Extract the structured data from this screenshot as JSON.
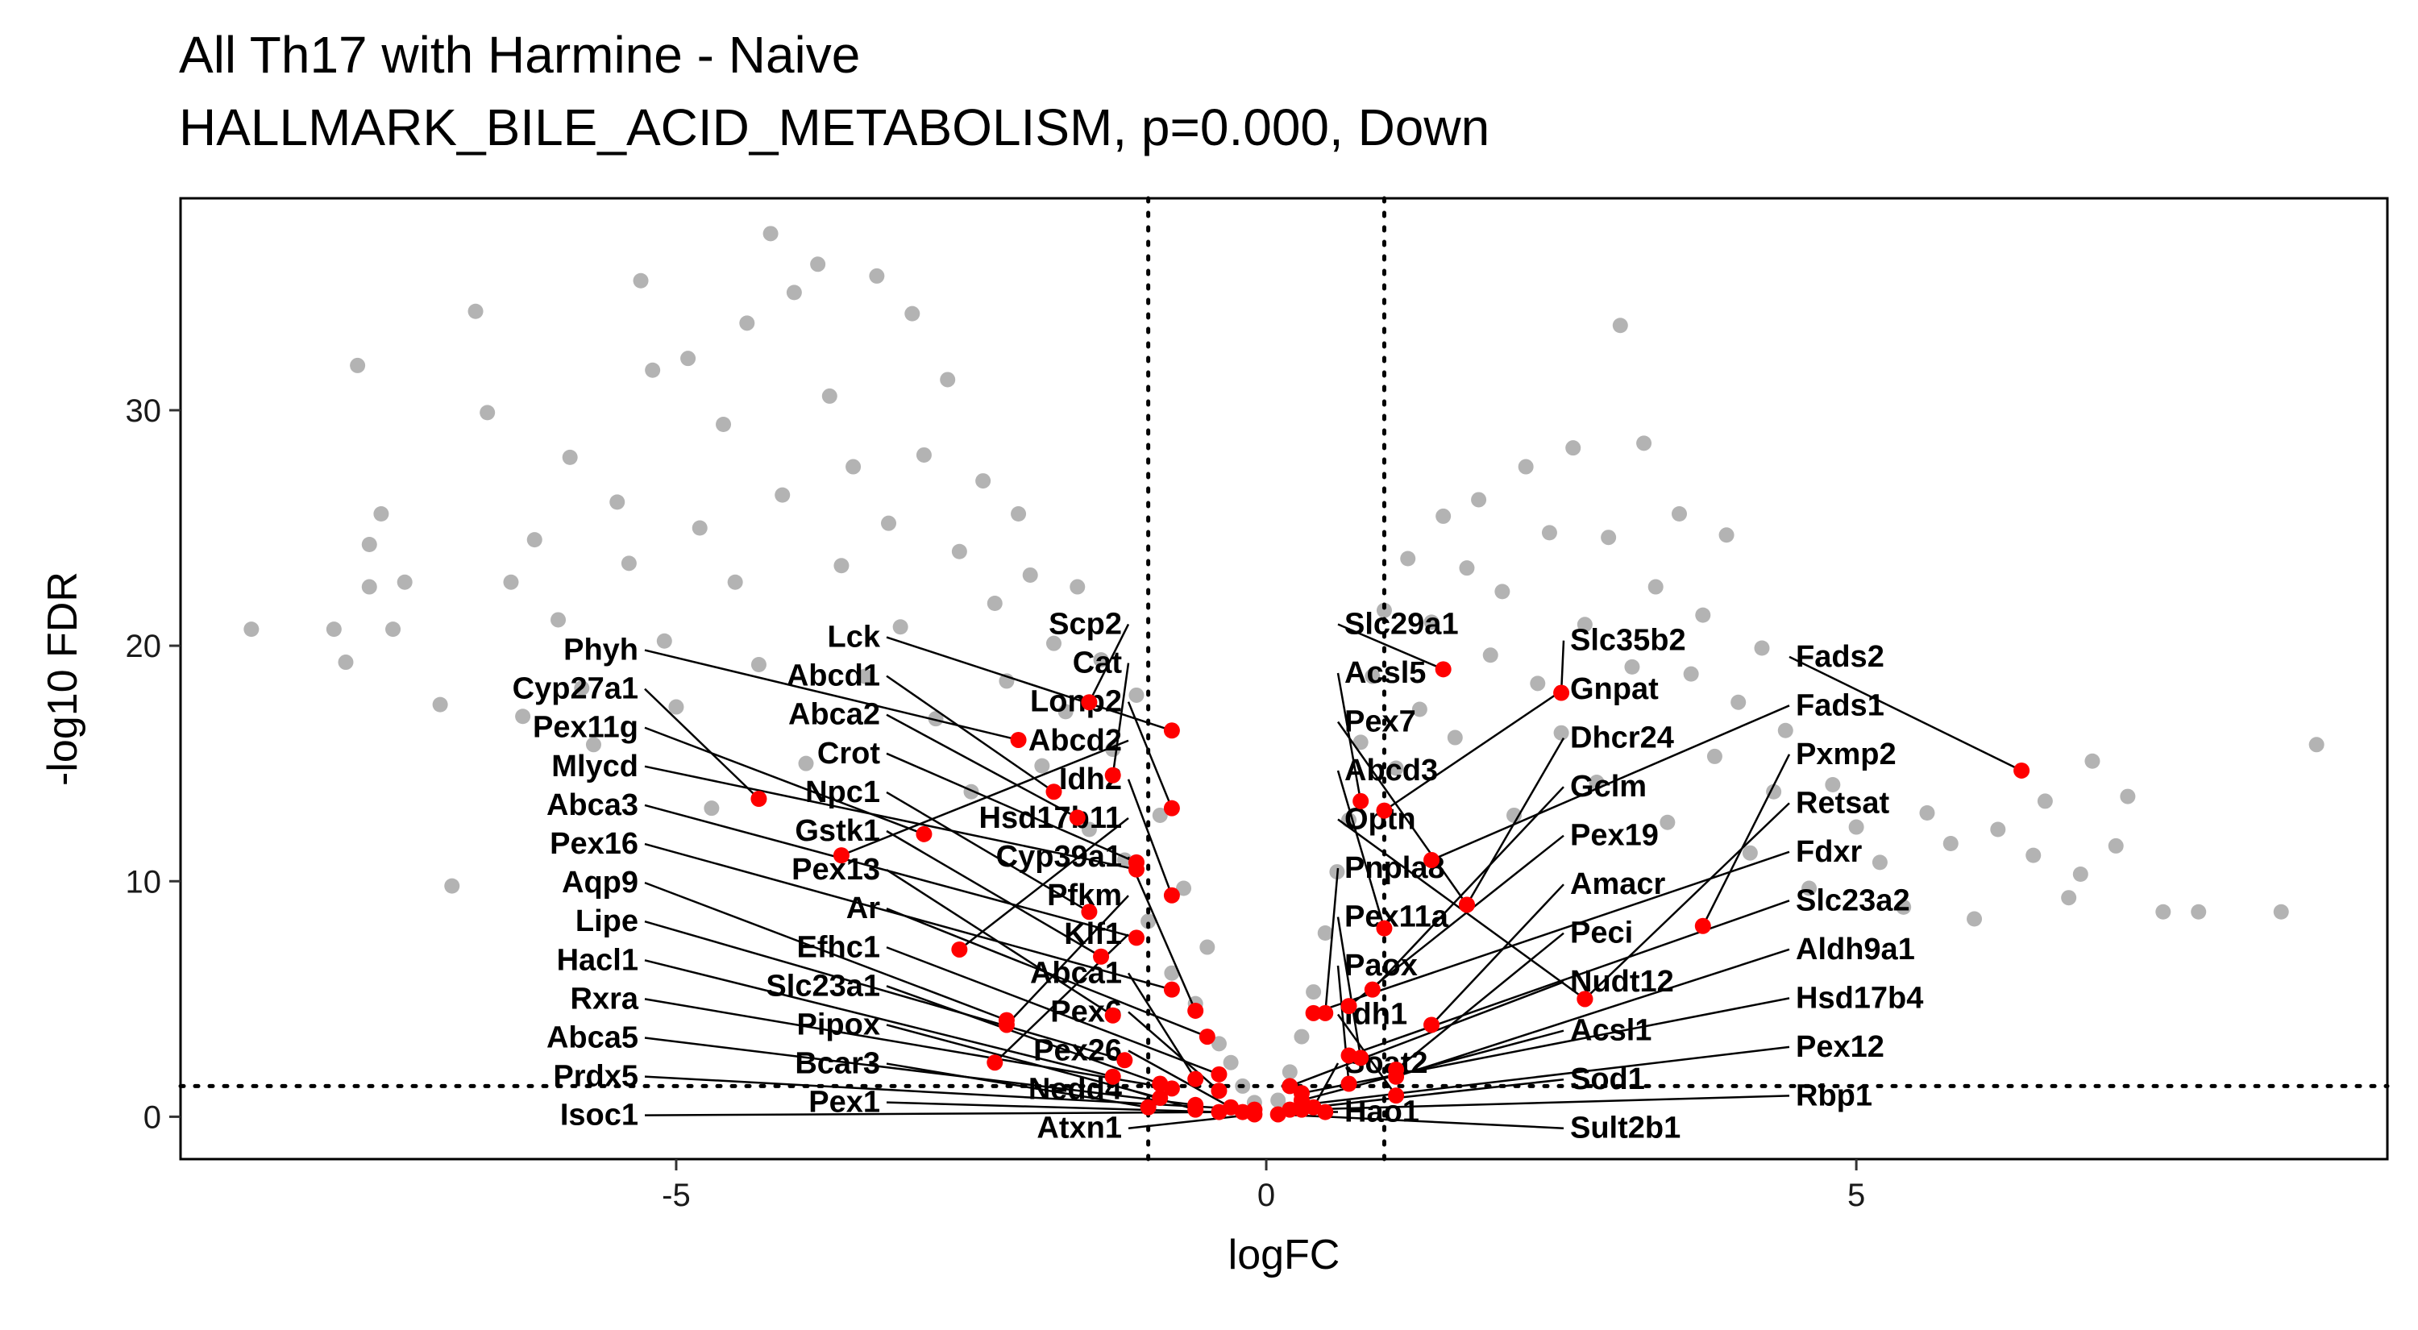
{
  "chart_data": {
    "type": "scatter",
    "title": "All Th17 with Harmine - Naive",
    "subtitle": "HALLMARK_BILE_ACID_METABOLISM, p=0.000, Down",
    "xlabel": "logFC",
    "ylabel": "-log10 FDR",
    "xlim": [
      -9.2,
      9.5
    ],
    "ylim": [
      -1.8,
      39
    ],
    "x_ticks": [
      -5,
      0,
      5
    ],
    "x_tick_labels": [
      "-5",
      "0",
      "5"
    ],
    "y_ticks": [
      0,
      10,
      20,
      30
    ],
    "y_tick_labels": [
      "0",
      "10",
      "20",
      "30"
    ],
    "thresholds": {
      "logFC": [
        -1,
        1
      ],
      "neg_log10_fdr": 1.3
    },
    "grid": false,
    "legend": "none",
    "colors": {
      "background_genes": "#b3b3b3",
      "highlighted_genes": "#ff0000",
      "threshold_lines": "#000000"
    },
    "highlighted_genes": [
      {
        "gene": "Slc29a1",
        "x": 1.5,
        "y": 19.0
      },
      {
        "gene": "Slc35b2",
        "x": 2.5,
        "y": 18.0
      },
      {
        "gene": "Fads2",
        "x": 6.4,
        "y": 14.7
      },
      {
        "gene": "Scp2",
        "x": -1.5,
        "y": 17.6
      },
      {
        "gene": "Lck",
        "x": -0.8,
        "y": 16.4
      },
      {
        "gene": "Phyh",
        "x": -2.1,
        "y": 16.0
      },
      {
        "gene": "Abcd1",
        "x": -1.8,
        "y": 13.8
      },
      {
        "gene": "Cat",
        "x": -1.3,
        "y": 14.5
      },
      {
        "gene": "Abca2",
        "x": -1.6,
        "y": 12.7
      },
      {
        "gene": "Cyp27a1",
        "x": -4.3,
        "y": 13.5
      },
      {
        "gene": "Lonp2",
        "x": -0.8,
        "y": 13.1
      },
      {
        "gene": "Acsl5",
        "x": 0.8,
        "y": 13.4
      },
      {
        "gene": "Gnpat",
        "x": 1.0,
        "y": 13.0
      },
      {
        "gene": "Pex11g",
        "x": -2.9,
        "y": 12.0
      },
      {
        "gene": "Abcd2",
        "x": -3.6,
        "y": 11.1
      },
      {
        "gene": "Crot",
        "x": -1.1,
        "y": 10.8
      },
      {
        "gene": "Mlycd",
        "x": -1.1,
        "y": 10.5
      },
      {
        "gene": "Fads1",
        "x": 1.4,
        "y": 10.9
      },
      {
        "gene": "Pex7",
        "x": 1.7,
        "y": 9.0
      },
      {
        "gene": "Dhcr24",
        "x": 1.7,
        "y": 9.0
      },
      {
        "gene": "Idh2",
        "x": -0.8,
        "y": 9.4
      },
      {
        "gene": "Npc1",
        "x": -1.5,
        "y": 8.7
      },
      {
        "gene": "Abca3",
        "x": -1.1,
        "y": 7.6
      },
      {
        "gene": "Pex16",
        "x": -0.8,
        "y": 5.4
      },
      {
        "gene": "Abcd3",
        "x": 1.0,
        "y": 8.0
      },
      {
        "gene": "Pxmp2",
        "x": 3.7,
        "y": 8.1
      },
      {
        "gene": "Hsd17b11",
        "x": -2.6,
        "y": 7.1
      },
      {
        "gene": "Gstk1",
        "x": -1.4,
        "y": 6.8
      },
      {
        "gene": "Cyp39a1",
        "x": -0.6,
        "y": 4.5
      },
      {
        "gene": "Aqp9",
        "x": -2.2,
        "y": 4.1
      },
      {
        "gene": "Ar",
        "x": -0.5,
        "y": 3.4
      },
      {
        "gene": "Pex19",
        "x": 0.7,
        "y": 4.7
      },
      {
        "gene": "Gclm",
        "x": 0.9,
        "y": 5.4
      },
      {
        "gene": "Fdxr",
        "x": 0.4,
        "y": 4.4
      },
      {
        "gene": "Retsat",
        "x": 2.7,
        "y": 5.0
      },
      {
        "gene": "Amacr",
        "x": 1.4,
        "y": 3.9
      },
      {
        "gene": "Efhc1",
        "x": -0.4,
        "y": 1.8
      },
      {
        "gene": "Hacl1",
        "x": -1.3,
        "y": 1.7
      },
      {
        "gene": "Abca1",
        "x": -0.6,
        "y": 1.6
      },
      {
        "gene": "Pex13",
        "x": -1.3,
        "y": 4.3
      },
      {
        "gene": "Pnpla8",
        "x": 0.5,
        "y": 4.4
      },
      {
        "gene": "Optn",
        "x": 2.7,
        "y": 5.0
      },
      {
        "gene": "Slc23a2",
        "x": 0.7,
        "y": 2.6
      },
      {
        "gene": "Pex11a",
        "x": 0.8,
        "y": 2.5
      },
      {
        "gene": "Peci",
        "x": 1.1,
        "y": 2.0
      },
      {
        "gene": "Rxra",
        "x": -0.8,
        "y": 1.2
      },
      {
        "gene": "Slc23a1",
        "x": -0.9,
        "y": 1.4
      },
      {
        "gene": "Pfkm",
        "x": -2.2,
        "y": 3.9
      },
      {
        "gene": "Lipe",
        "x": -1.2,
        "y": 2.4
      },
      {
        "gene": "Pex6",
        "x": -0.4,
        "y": 1.1
      },
      {
        "gene": "Prdx5",
        "x": -0.1,
        "y": 0.3
      },
      {
        "gene": "Hsd17b4",
        "x": 0.3,
        "y": 1.0
      },
      {
        "gene": "Paox",
        "x": 0.7,
        "y": 1.4
      },
      {
        "gene": "Aldh9a1",
        "x": 1.1,
        "y": 1.7
      },
      {
        "gene": "Idh1",
        "x": 1.1,
        "y": 0.9
      },
      {
        "gene": "Klf1",
        "x": -2.3,
        "y": 2.3
      },
      {
        "gene": "Pipox",
        "x": -0.9,
        "y": 0.8
      },
      {
        "gene": "Abca5",
        "x": -0.6,
        "y": 0.5
      },
      {
        "gene": "Pex26",
        "x": -0.3,
        "y": 0.4
      },
      {
        "gene": "Nudt12",
        "x": 0.2,
        "y": 1.3
      },
      {
        "gene": "Acsl1",
        "x": 0.3,
        "y": 0.7
      },
      {
        "gene": "Pex12",
        "x": 0.3,
        "y": 0.5
      },
      {
        "gene": "Bcar3",
        "x": -1.0,
        "y": 0.4
      },
      {
        "gene": "Nedd4",
        "x": -0.6,
        "y": 0.3
      },
      {
        "gene": "Pex1",
        "x": -0.4,
        "y": 0.2
      },
      {
        "gene": "Isoc1",
        "x": -0.2,
        "y": 0.2
      },
      {
        "gene": "Atxn1",
        "x": -0.1,
        "y": 0.1
      },
      {
        "gene": "Sult2b1",
        "x": 0.1,
        "y": 0.1
      },
      {
        "gene": "Sod1",
        "x": 0.2,
        "y": 0.3
      },
      {
        "gene": "Rbp1",
        "x": 0.3,
        "y": 0.3
      },
      {
        "gene": "Soat2",
        "x": 0.4,
        "y": 0.4
      },
      {
        "gene": "Hao1",
        "x": 0.5,
        "y": 0.2
      }
    ],
    "background_genes": [
      {
        "x": -8.6,
        "y": 20.7
      },
      {
        "x": -7.9,
        "y": 20.7
      },
      {
        "x": -7.8,
        "y": 19.3
      },
      {
        "x": -7.7,
        "y": 31.9
      },
      {
        "x": -7.6,
        "y": 24.3
      },
      {
        "x": -7.5,
        "y": 25.6
      },
      {
        "x": -7.6,
        "y": 22.5
      },
      {
        "x": -7.3,
        "y": 22.7
      },
      {
        "x": -7.4,
        "y": 20.7
      },
      {
        "x": -7.0,
        "y": 17.5
      },
      {
        "x": -6.9,
        "y": 9.8
      },
      {
        "x": -6.7,
        "y": 34.2
      },
      {
        "x": -6.6,
        "y": 29.9
      },
      {
        "x": -6.4,
        "y": 22.7
      },
      {
        "x": -6.3,
        "y": 17.0
      },
      {
        "x": -6.2,
        "y": 24.5
      },
      {
        "x": -6.0,
        "y": 21.1
      },
      {
        "x": -5.9,
        "y": 28.0
      },
      {
        "x": -5.8,
        "y": 18.2
      },
      {
        "x": -5.7,
        "y": 15.8
      },
      {
        "x": -5.5,
        "y": 26.1
      },
      {
        "x": -5.4,
        "y": 23.5
      },
      {
        "x": -5.3,
        "y": 35.5
      },
      {
        "x": -5.2,
        "y": 31.7
      },
      {
        "x": -5.1,
        "y": 20.2
      },
      {
        "x": -5.0,
        "y": 17.4
      },
      {
        "x": -4.9,
        "y": 32.2
      },
      {
        "x": -4.8,
        "y": 25.0
      },
      {
        "x": -4.7,
        "y": 13.1
      },
      {
        "x": -4.6,
        "y": 29.4
      },
      {
        "x": -4.5,
        "y": 22.7
      },
      {
        "x": -4.4,
        "y": 33.7
      },
      {
        "x": -4.3,
        "y": 19.2
      },
      {
        "x": -4.2,
        "y": 37.5
      },
      {
        "x": -4.1,
        "y": 26.4
      },
      {
        "x": -4.0,
        "y": 35.0
      },
      {
        "x": -3.9,
        "y": 15.0
      },
      {
        "x": -3.8,
        "y": 36.2
      },
      {
        "x": -3.7,
        "y": 30.6
      },
      {
        "x": -3.6,
        "y": 23.4
      },
      {
        "x": -3.5,
        "y": 27.6
      },
      {
        "x": -3.4,
        "y": 18.7
      },
      {
        "x": -3.3,
        "y": 35.7
      },
      {
        "x": -3.2,
        "y": 25.2
      },
      {
        "x": -3.1,
        "y": 20.8
      },
      {
        "x": -3.0,
        "y": 34.1
      },
      {
        "x": -2.9,
        "y": 28.1
      },
      {
        "x": -2.8,
        "y": 16.9
      },
      {
        "x": -2.7,
        "y": 31.3
      },
      {
        "x": -2.6,
        "y": 24.0
      },
      {
        "x": -2.5,
        "y": 13.8
      },
      {
        "x": -2.4,
        "y": 27.0
      },
      {
        "x": -2.3,
        "y": 21.8
      },
      {
        "x": -2.2,
        "y": 18.5
      },
      {
        "x": -2.1,
        "y": 25.6
      },
      {
        "x": -2.0,
        "y": 23.0
      },
      {
        "x": -1.9,
        "y": 14.9
      },
      {
        "x": -1.8,
        "y": 20.1
      },
      {
        "x": -1.7,
        "y": 17.2
      },
      {
        "x": -1.6,
        "y": 22.5
      },
      {
        "x": -1.5,
        "y": 12.2
      },
      {
        "x": -1.4,
        "y": 19.4
      },
      {
        "x": -1.3,
        "y": 15.6
      },
      {
        "x": -1.2,
        "y": 10.9
      },
      {
        "x": -1.1,
        "y": 17.9
      },
      {
        "x": -1.0,
        "y": 8.3
      },
      {
        "x": -0.9,
        "y": 12.8
      },
      {
        "x": -0.8,
        "y": 6.1
      },
      {
        "x": -0.7,
        "y": 9.7
      },
      {
        "x": -0.6,
        "y": 4.8
      },
      {
        "x": -0.5,
        "y": 7.2
      },
      {
        "x": -0.4,
        "y": 3.1
      },
      {
        "x": -0.3,
        "y": 2.3
      },
      {
        "x": -0.2,
        "y": 1.3
      },
      {
        "x": -0.1,
        "y": 0.6
      },
      {
        "x": 0.1,
        "y": 0.7
      },
      {
        "x": 0.2,
        "y": 1.9
      },
      {
        "x": 0.3,
        "y": 3.4
      },
      {
        "x": 0.4,
        "y": 5.3
      },
      {
        "x": 0.5,
        "y": 7.8
      },
      {
        "x": 0.6,
        "y": 10.4
      },
      {
        "x": 0.7,
        "y": 12.6
      },
      {
        "x": 0.8,
        "y": 15.9
      },
      {
        "x": 0.9,
        "y": 18.7
      },
      {
        "x": 1.0,
        "y": 21.5
      },
      {
        "x": 1.1,
        "y": 14.8
      },
      {
        "x": 1.2,
        "y": 23.7
      },
      {
        "x": 1.3,
        "y": 17.3
      },
      {
        "x": 1.4,
        "y": 21.0
      },
      {
        "x": 1.5,
        "y": 25.5
      },
      {
        "x": 1.6,
        "y": 16.1
      },
      {
        "x": 1.7,
        "y": 23.3
      },
      {
        "x": 1.8,
        "y": 26.2
      },
      {
        "x": 1.9,
        "y": 19.6
      },
      {
        "x": 2.0,
        "y": 22.3
      },
      {
        "x": 2.1,
        "y": 12.8
      },
      {
        "x": 2.2,
        "y": 27.6
      },
      {
        "x": 2.3,
        "y": 18.4
      },
      {
        "x": 2.4,
        "y": 24.8
      },
      {
        "x": 2.5,
        "y": 16.3
      },
      {
        "x": 2.6,
        "y": 28.4
      },
      {
        "x": 2.7,
        "y": 20.9
      },
      {
        "x": 2.8,
        "y": 14.2
      },
      {
        "x": 2.9,
        "y": 24.6
      },
      {
        "x": 3.0,
        "y": 33.6
      },
      {
        "x": 3.1,
        "y": 19.1
      },
      {
        "x": 3.2,
        "y": 28.6
      },
      {
        "x": 3.3,
        "y": 22.5
      },
      {
        "x": 3.4,
        "y": 12.5
      },
      {
        "x": 3.5,
        "y": 25.6
      },
      {
        "x": 3.6,
        "y": 18.8
      },
      {
        "x": 3.7,
        "y": 21.3
      },
      {
        "x": 3.8,
        "y": 15.3
      },
      {
        "x": 3.9,
        "y": 24.7
      },
      {
        "x": 4.0,
        "y": 17.6
      },
      {
        "x": 4.1,
        "y": 11.2
      },
      {
        "x": 4.2,
        "y": 19.9
      },
      {
        "x": 4.3,
        "y": 13.8
      },
      {
        "x": 4.4,
        "y": 16.4
      },
      {
        "x": 4.6,
        "y": 9.7
      },
      {
        "x": 4.8,
        "y": 14.1
      },
      {
        "x": 5.0,
        "y": 12.3
      },
      {
        "x": 5.2,
        "y": 10.8
      },
      {
        "x": 5.4,
        "y": 8.9
      },
      {
        "x": 5.6,
        "y": 12.9
      },
      {
        "x": 5.8,
        "y": 11.6
      },
      {
        "x": 6.0,
        "y": 8.4
      },
      {
        "x": 6.2,
        "y": 12.2
      },
      {
        "x": 6.5,
        "y": 11.1
      },
      {
        "x": 6.8,
        "y": 9.3
      },
      {
        "x": 7.0,
        "y": 15.1
      },
      {
        "x": 7.3,
        "y": 13.6
      },
      {
        "x": 7.6,
        "y": 8.7
      },
      {
        "x": 7.9,
        "y": 8.7
      },
      {
        "x": 8.9,
        "y": 15.8
      },
      {
        "x": 8.6,
        "y": 8.7
      },
      {
        "x": 7.2,
        "y": 11.5
      },
      {
        "x": 6.9,
        "y": 10.3
      },
      {
        "x": 6.6,
        "y": 13.4
      }
    ]
  }
}
